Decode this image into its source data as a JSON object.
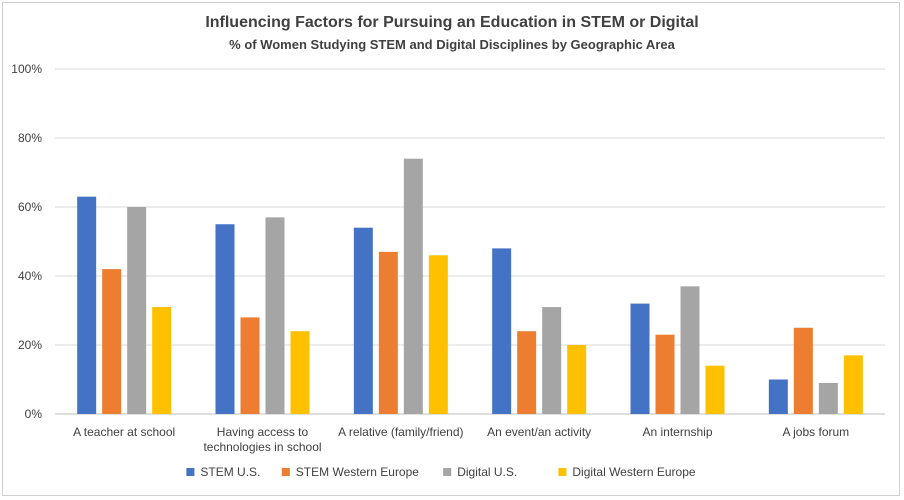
{
  "chart_data": {
    "type": "bar",
    "title": "Influencing Factors for Pursuing an Education in STEM or Digital",
    "subtitle": "% of Women Studying STEM and Digital Disciplines by Geographic Area",
    "categories": [
      [
        "A teacher at school"
      ],
      [
        "Having access to",
        "technologies in school"
      ],
      [
        "A relative (family/friend)"
      ],
      [
        "An event/an activity"
      ],
      [
        "An internship"
      ],
      [
        "A jobs forum"
      ]
    ],
    "series": [
      {
        "name": "STEM U.S.",
        "color": "#4472c4",
        "values": [
          63,
          55,
          54,
          48,
          32,
          10
        ]
      },
      {
        "name": "STEM Western Europe",
        "color": "#ed7d31",
        "values": [
          42,
          28,
          47,
          24,
          23,
          25
        ]
      },
      {
        "name": "Digital U.S.",
        "color": "#a5a5a5",
        "values": [
          60,
          57,
          74,
          31,
          37,
          9
        ]
      },
      {
        "name": "Digital Western Europe",
        "color": "#ffc000",
        "values": [
          31,
          24,
          46,
          20,
          14,
          17
        ]
      }
    ],
    "yticks": [
      "0%",
      "20%",
      "40%",
      "60%",
      "80%",
      "100%"
    ],
    "ylim": [
      0,
      100
    ],
    "grid": true,
    "legend": "bottom"
  }
}
